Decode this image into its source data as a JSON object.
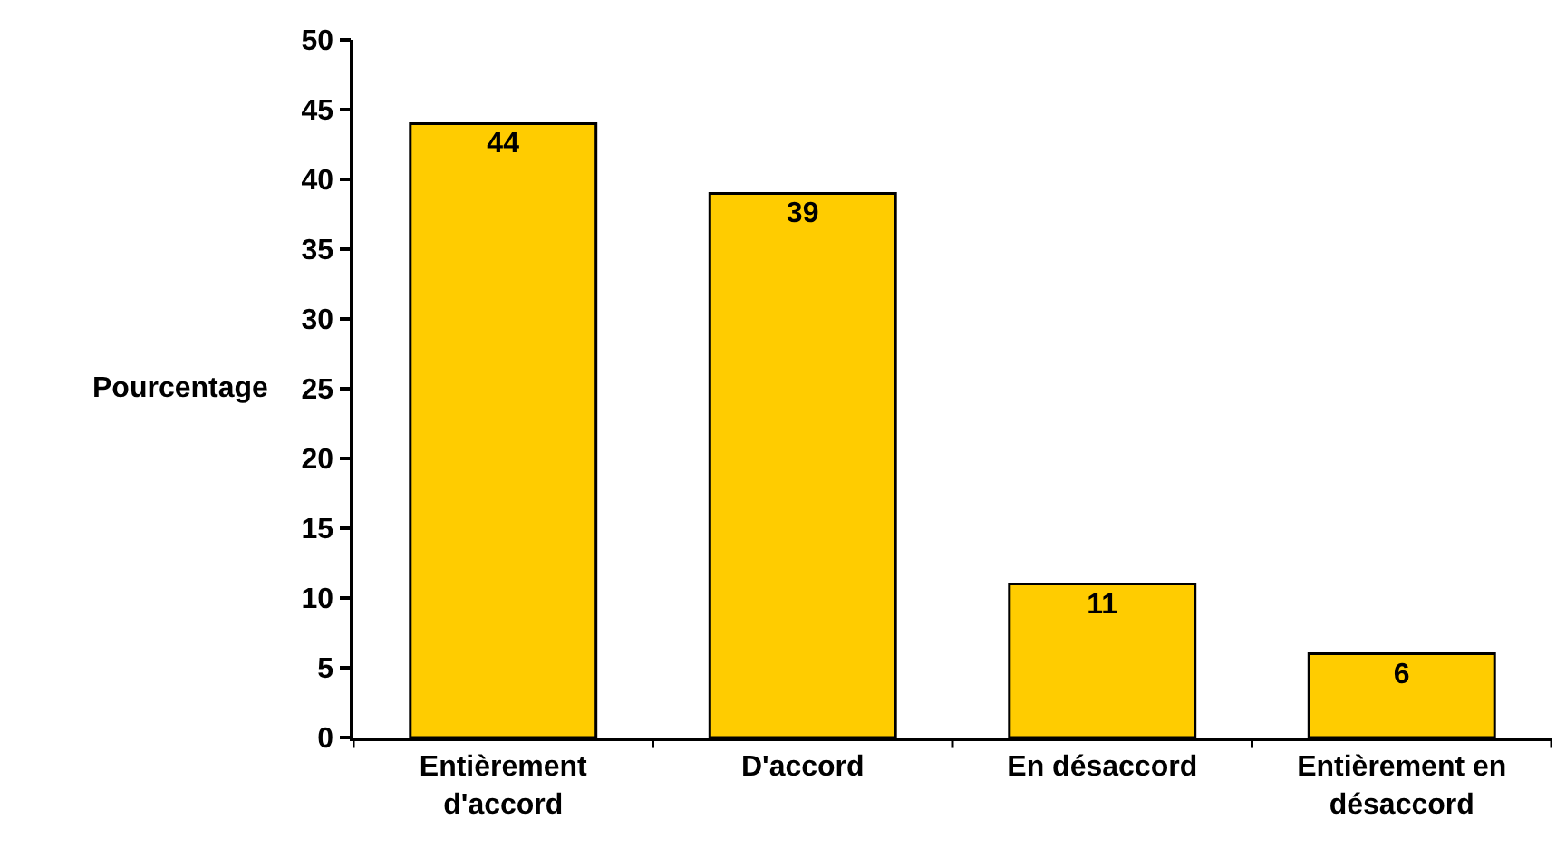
{
  "chart_data": {
    "type": "bar",
    "ylabel": "Pourcentage",
    "categories": [
      "Entièrement\nd'accord",
      "D'accord",
      "En désaccord",
      "Entièrement en\ndésaccord"
    ],
    "values": [
      44,
      39,
      11,
      6
    ],
    "color": "#ffcc00",
    "ylim": [
      0,
      50
    ],
    "yticks": [
      0,
      5,
      10,
      15,
      20,
      25,
      30,
      35,
      40,
      45,
      50
    ],
    "data_labels": true
  }
}
